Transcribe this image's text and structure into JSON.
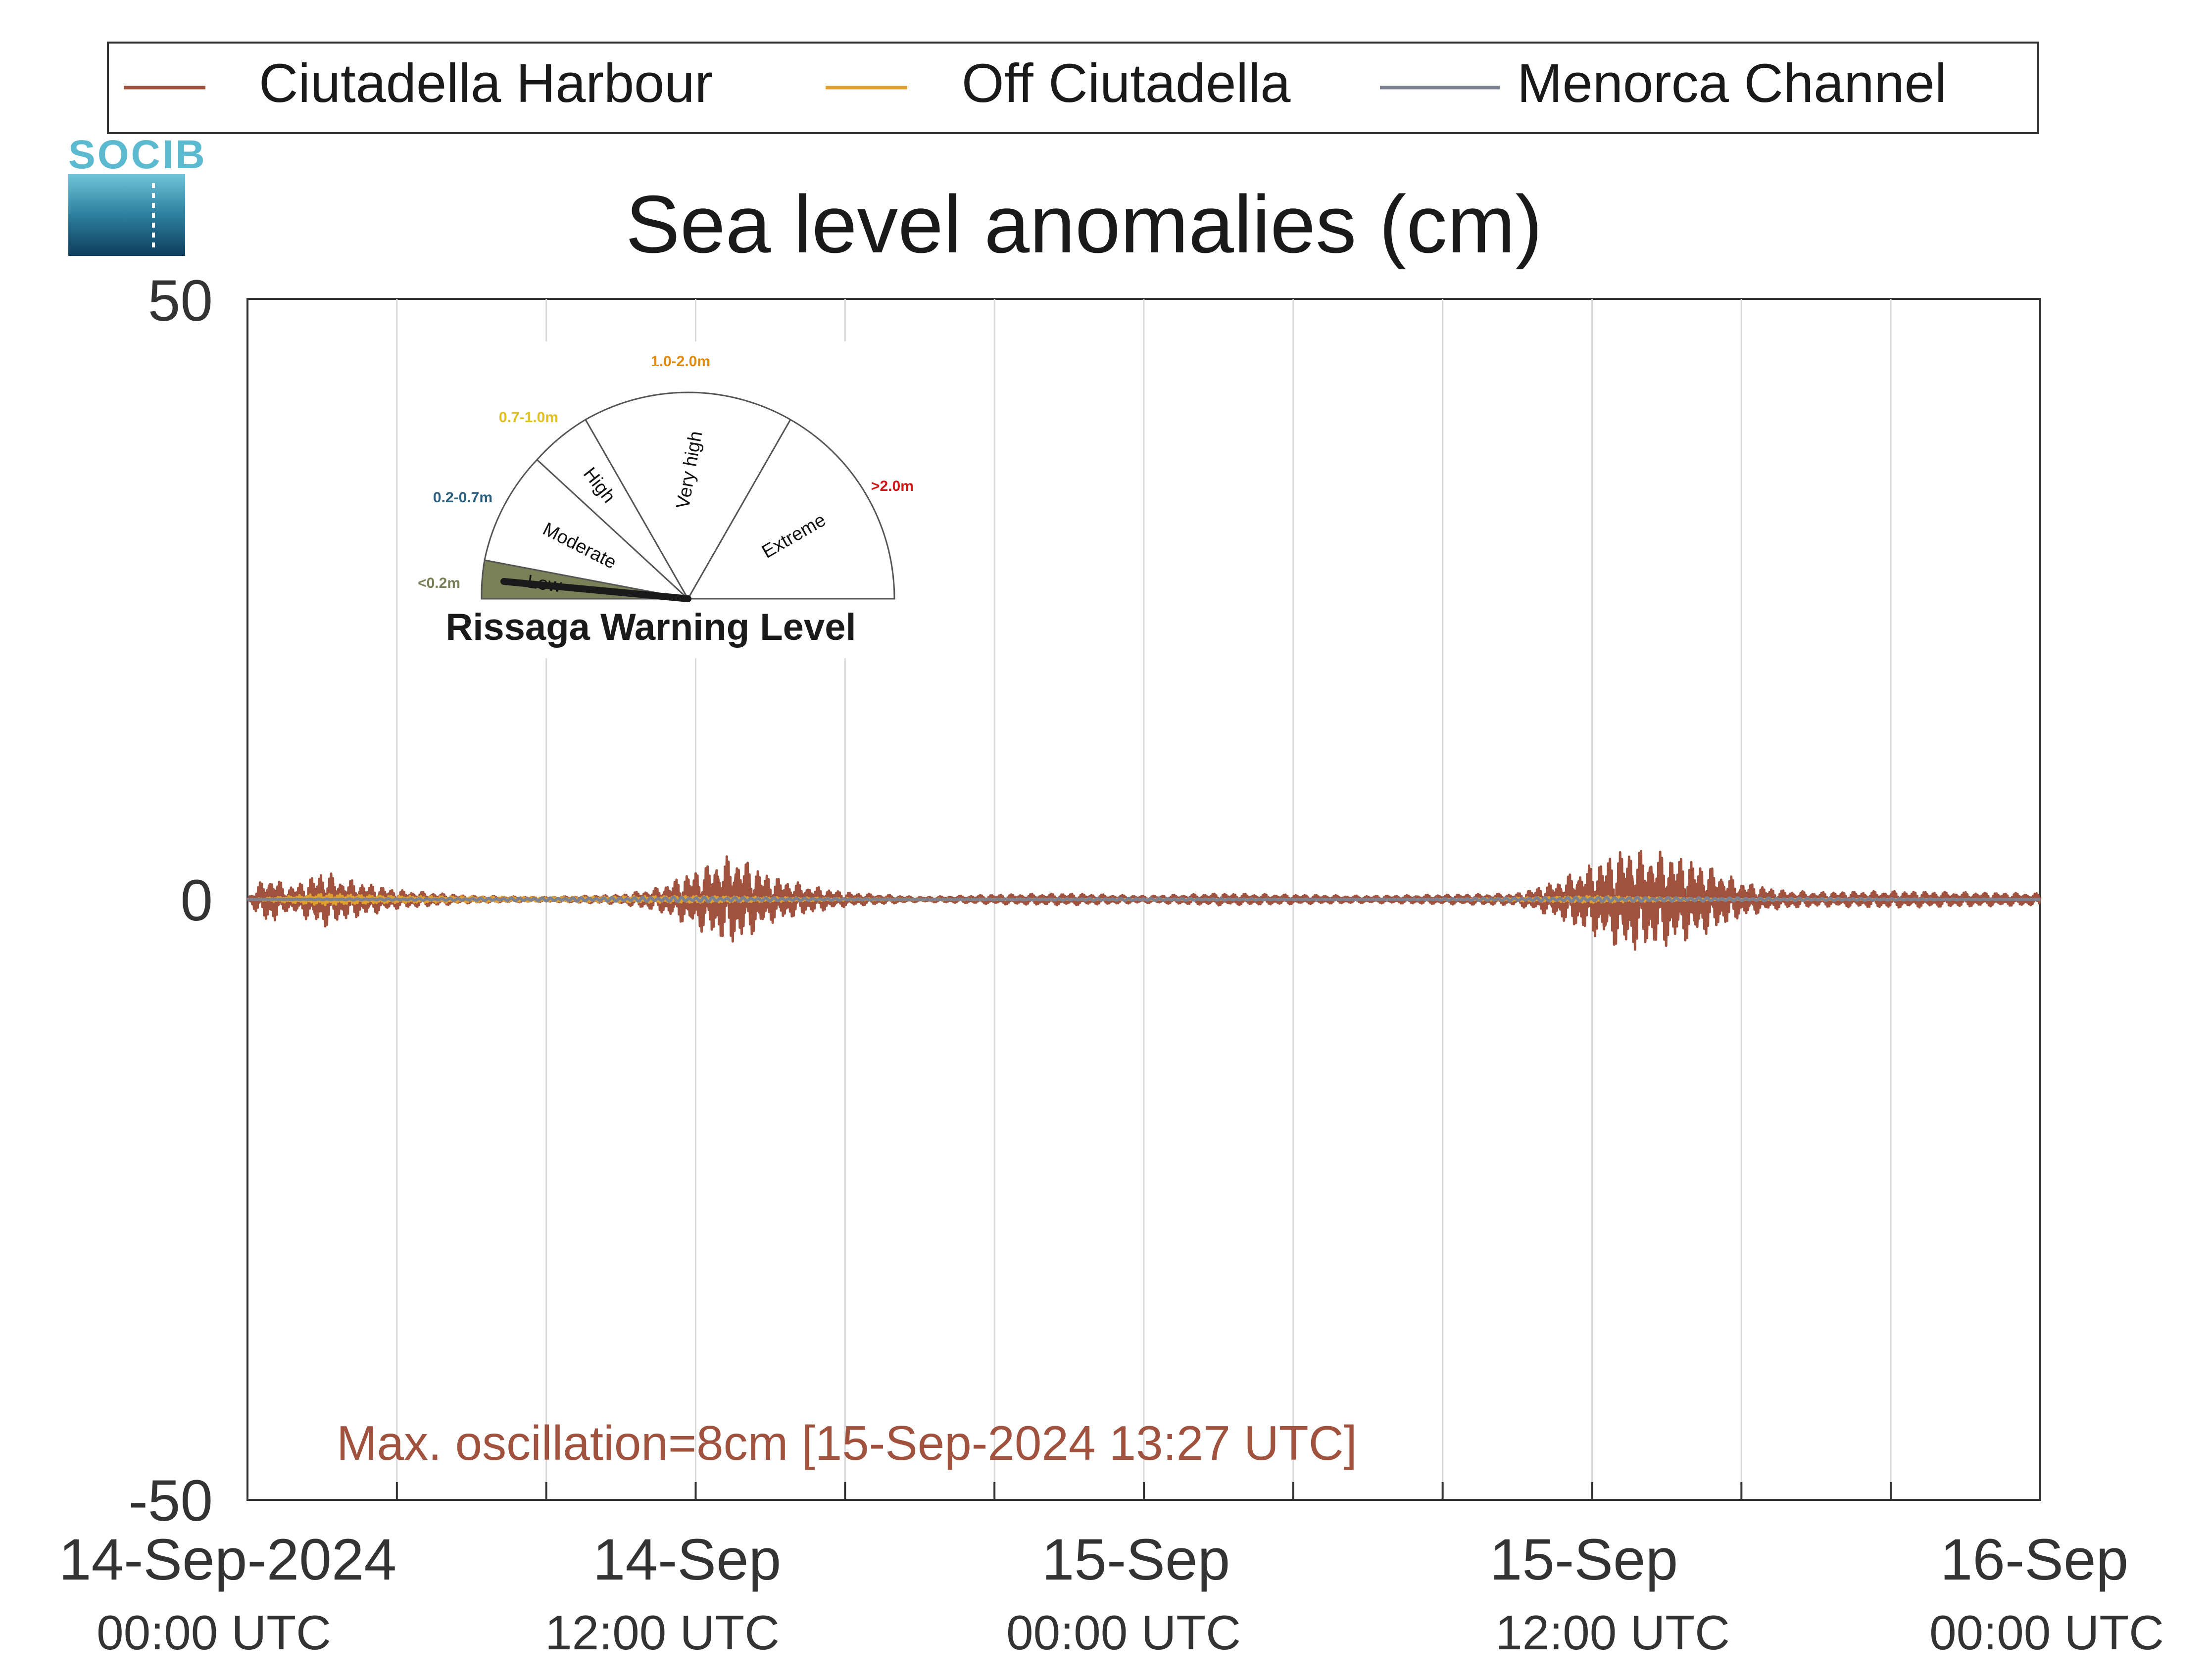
{
  "logo": {
    "text": "SOCIB"
  },
  "legend": {
    "entries": [
      {
        "label": "Ciutadella Harbour",
        "color": "#a0523f"
      },
      {
        "label": "Off Ciutadella",
        "color": "#e0a030"
      },
      {
        "label": "Menorca Channel",
        "color": "#7d8290"
      }
    ]
  },
  "chart_data": {
    "type": "line",
    "title": "Sea level anomalies (cm)",
    "xlabel": "",
    "ylabel": "",
    "x_range": [
      "2024-09-14 00:00",
      "2024-09-16 00:00"
    ],
    "ylim": [
      -50,
      50
    ],
    "yticks": [
      "50",
      "0",
      "-50"
    ],
    "grid": "vertical",
    "legend_position": "top",
    "xticks": [
      {
        "date": "14-Sep-2024",
        "time": "00:00 UTC"
      },
      {
        "date": "14-Sep",
        "time": "12:00 UTC"
      },
      {
        "date": "15-Sep",
        "time": "00:00 UTC"
      },
      {
        "date": "15-Sep",
        "time": "12:00 UTC"
      },
      {
        "date": "16-Sep",
        "time": "00:00 UTC"
      }
    ],
    "series": [
      {
        "name": "Ciutadella Harbour",
        "color": "#a0523f",
        "points": [
          [
            "2024-09-14 00:00",
            0.0
          ],
          [
            "2024-09-14 00:15",
            -1.2
          ],
          [
            "2024-09-14 00:30",
            1.8
          ],
          [
            "2024-09-14 00:45",
            -2.0
          ],
          [
            "2024-09-14 01:00",
            1.0
          ],
          [
            "2024-09-14 01:30",
            -1.5
          ],
          [
            "2024-09-14 02:00",
            2.5
          ],
          [
            "2024-09-14 02:30",
            -1.8
          ],
          [
            "2024-09-14 03:00",
            1.5
          ],
          [
            "2024-09-14 04:00",
            0.8
          ],
          [
            "2024-09-14 06:00",
            0.3
          ],
          [
            "2024-09-14 08:00",
            0.2
          ],
          [
            "2024-09-14 10:00",
            0.4
          ],
          [
            "2024-09-14 11:00",
            1.0
          ],
          [
            "2024-09-14 12:00",
            2.5
          ],
          [
            "2024-09-14 13:00",
            3.8
          ],
          [
            "2024-09-14 13:30",
            -3.0
          ],
          [
            "2024-09-14 14:00",
            2.0
          ],
          [
            "2024-09-14 15:00",
            1.2
          ],
          [
            "2024-09-14 16:00",
            0.6
          ],
          [
            "2024-09-14 18:00",
            0.2
          ],
          [
            "2024-09-14 20:00",
            0.4
          ],
          [
            "2024-09-14 22:00",
            0.5
          ],
          [
            "2024-09-15 00:00",
            0.3
          ],
          [
            "2024-09-15 02:00",
            0.5
          ],
          [
            "2024-09-15 04:00",
            0.4
          ],
          [
            "2024-09-15 06:00",
            0.3
          ],
          [
            "2024-09-15 08:00",
            0.4
          ],
          [
            "2024-09-15 10:00",
            0.5
          ],
          [
            "2024-09-15 11:00",
            1.5
          ],
          [
            "2024-09-15 12:00",
            3.0
          ],
          [
            "2024-09-15 13:00",
            4.5
          ],
          [
            "2024-09-15 13:27",
            -4.0
          ],
          [
            "2024-09-15 14:00",
            4.0
          ],
          [
            "2024-09-15 15:00",
            3.0
          ],
          [
            "2024-09-15 16:00",
            1.5
          ],
          [
            "2024-09-15 17:00",
            0.8
          ],
          [
            "2024-09-15 18:00",
            0.6
          ],
          [
            "2024-09-15 20:00",
            0.7
          ],
          [
            "2024-09-15 22:00",
            0.6
          ],
          [
            "2024-09-16 00:00",
            0.5
          ]
        ]
      },
      {
        "name": "Off Ciutadella",
        "color": "#e0a030",
        "points": [
          [
            "2024-09-14 00:00",
            0.0
          ],
          [
            "2024-09-14 02:00",
            -0.5
          ],
          [
            "2024-09-14 04:00",
            0.3
          ],
          [
            "2024-09-14 08:00",
            0.2
          ],
          [
            "2024-09-14 12:00",
            0.3
          ],
          [
            "2024-09-14 16:00",
            0.1
          ],
          [
            "2024-09-15 00:00",
            0.0
          ],
          [
            "2024-09-15 08:00",
            0.0
          ],
          [
            "2024-09-15 12:00",
            -0.3
          ],
          [
            "2024-09-15 16:00",
            0.0
          ],
          [
            "2024-09-16 00:00",
            0.0
          ]
        ]
      },
      {
        "name": "Menorca Channel",
        "color": "#7d8290",
        "points": [
          [
            "2024-09-14 00:00",
            0.0
          ],
          [
            "2024-09-14 06:00",
            0.1
          ],
          [
            "2024-09-14 12:00",
            0.2
          ],
          [
            "2024-09-14 18:00",
            0.0
          ],
          [
            "2024-09-15 00:00",
            -0.1
          ],
          [
            "2024-09-15 06:00",
            0.0
          ],
          [
            "2024-09-15 12:00",
            0.2
          ],
          [
            "2024-09-15 18:00",
            -0.1
          ],
          [
            "2024-09-16 00:00",
            0.0
          ]
        ]
      }
    ],
    "annotation": "Max. oscillation=8cm [15-Sep-2024 13:27 UTC]",
    "annotation_color": "#a0523f"
  },
  "warning_gauge": {
    "title": "Rissaga Warning Level",
    "current_level": "Low",
    "sectors": [
      {
        "label": "Low",
        "range": "<0.2m",
        "color": "#7a8057"
      },
      {
        "label": "Moderate",
        "range": "0.2-0.7m",
        "color": "#2a5f80"
      },
      {
        "label": "High",
        "range": "0.7-1.0m",
        "color": "#e0c020"
      },
      {
        "label": "Very high",
        "range": "1.0-2.0m",
        "color": "#e08a10"
      },
      {
        "label": "Extreme",
        "range": ">2.0m",
        "color": "#d01818"
      }
    ]
  }
}
